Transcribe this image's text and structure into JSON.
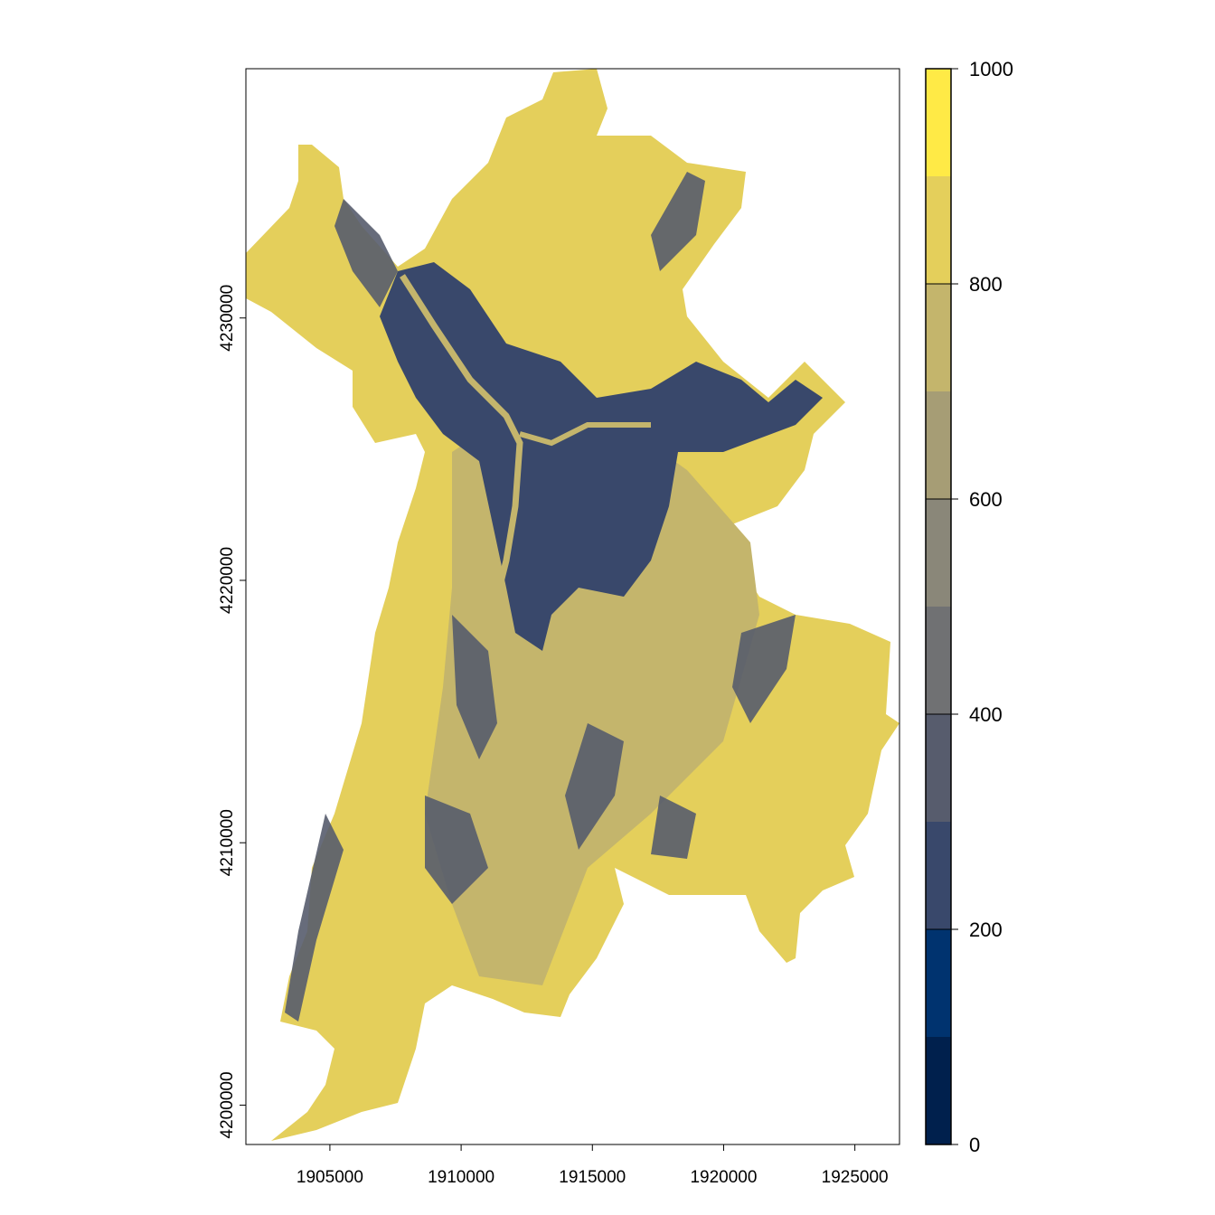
{
  "chart_data": {
    "type": "heatmap",
    "subtype": "raster-map",
    "title": "",
    "xlabel": "",
    "ylabel": "",
    "xlim": [
      1901800,
      1926700
    ],
    "ylim": [
      4198500,
      4239500
    ],
    "x_ticks": [
      1905000,
      1910000,
      1915000,
      1920000,
      1925000
    ],
    "x_tick_labels": [
      "1905000",
      "1910000",
      "1915000",
      "1920000",
      "1925000"
    ],
    "y_ticks": [
      4200000,
      4210000,
      4220000,
      4230000
    ],
    "y_tick_labels": [
      "4200000",
      "4210000",
      "4220000",
      "4230000"
    ],
    "legend": {
      "placement": "right",
      "range": [
        0,
        1000
      ],
      "ticks": [
        0,
        200,
        400,
        600,
        800,
        1000
      ],
      "tick_labels": [
        "0",
        "200",
        "400",
        "600",
        "800",
        "1000"
      ],
      "breaks": [
        0,
        100,
        200,
        300,
        400,
        500,
        600,
        700,
        800,
        900,
        1000
      ],
      "colors": [
        "#00204D",
        "#00336F",
        "#39486B",
        "#575C6D",
        "#707173",
        "#8A8779",
        "#A69D75",
        "#C4B56C",
        "#E4CF5B",
        "#FFEA46"
      ]
    },
    "dominant_classes": {
      "outer_area": "#E4CF5B",
      "valley_area": "#C4B56C",
      "urban_area": "#39486B",
      "edge_area": "#575C6D"
    }
  }
}
